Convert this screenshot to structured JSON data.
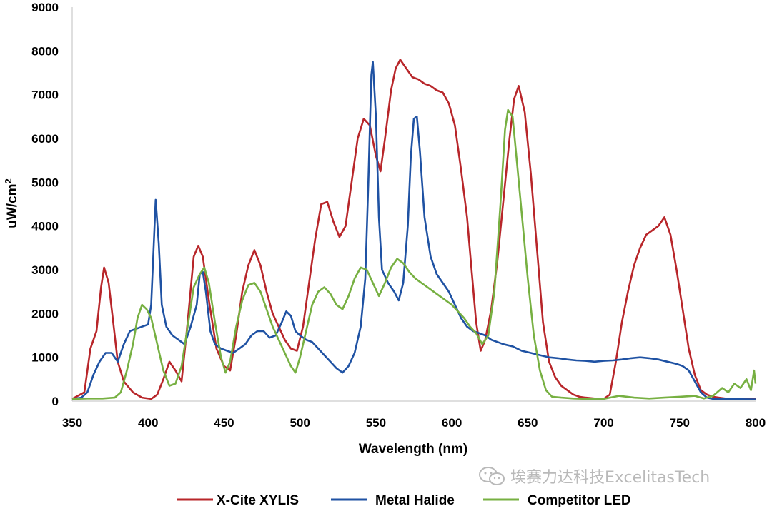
{
  "chart_data": {
    "type": "line",
    "title": "",
    "xlabel": "Wavelength (nm)",
    "ylabel": "uW/cm",
    "ylabel_superscript": "2",
    "xlim": [
      350,
      800
    ],
    "ylim": [
      0,
      9000
    ],
    "x_ticks": [
      "350",
      "400",
      "450",
      "500",
      "550",
      "600",
      "650",
      "700",
      "750",
      "800"
    ],
    "y_ticks": [
      "0",
      "1000",
      "2000",
      "3000",
      "4000",
      "5000",
      "6000",
      "7000",
      "8000",
      "9000"
    ],
    "legend_position": "bottom",
    "series": [
      {
        "name": "X-Cite XYLIS",
        "color": "#b8262a",
        "points": [
          [
            350,
            50
          ],
          [
            358,
            200
          ],
          [
            362,
            1200
          ],
          [
            366,
            1600
          ],
          [
            369,
            2600
          ],
          [
            371,
            3050
          ],
          [
            374,
            2700
          ],
          [
            377,
            1800
          ],
          [
            380,
            900
          ],
          [
            384,
            450
          ],
          [
            390,
            200
          ],
          [
            396,
            80
          ],
          [
            402,
            50
          ],
          [
            406,
            150
          ],
          [
            410,
            500
          ],
          [
            414,
            900
          ],
          [
            418,
            700
          ],
          [
            422,
            450
          ],
          [
            426,
            1800
          ],
          [
            430,
            3300
          ],
          [
            433,
            3550
          ],
          [
            436,
            3300
          ],
          [
            440,
            2300
          ],
          [
            445,
            1200
          ],
          [
            450,
            800
          ],
          [
            454,
            700
          ],
          [
            458,
            1500
          ],
          [
            462,
            2500
          ],
          [
            466,
            3100
          ],
          [
            470,
            3450
          ],
          [
            474,
            3100
          ],
          [
            478,
            2500
          ],
          [
            482,
            2000
          ],
          [
            486,
            1700
          ],
          [
            490,
            1400
          ],
          [
            494,
            1200
          ],
          [
            498,
            1150
          ],
          [
            502,
            1700
          ],
          [
            506,
            2700
          ],
          [
            510,
            3700
          ],
          [
            514,
            4500
          ],
          [
            518,
            4550
          ],
          [
            522,
            4100
          ],
          [
            526,
            3750
          ],
          [
            530,
            4000
          ],
          [
            534,
            5000
          ],
          [
            538,
            6000
          ],
          [
            542,
            6450
          ],
          [
            546,
            6300
          ],
          [
            550,
            5600
          ],
          [
            553,
            5250
          ],
          [
            556,
            6000
          ],
          [
            560,
            7100
          ],
          [
            563,
            7600
          ],
          [
            566,
            7800
          ],
          [
            570,
            7600
          ],
          [
            574,
            7400
          ],
          [
            578,
            7350
          ],
          [
            582,
            7250
          ],
          [
            586,
            7200
          ],
          [
            590,
            7100
          ],
          [
            594,
            7050
          ],
          [
            598,
            6800
          ],
          [
            602,
            6300
          ],
          [
            606,
            5300
          ],
          [
            610,
            4200
          ],
          [
            613,
            3000
          ],
          [
            616,
            1800
          ],
          [
            619,
            1150
          ],
          [
            622,
            1400
          ],
          [
            626,
            2100
          ],
          [
            630,
            3200
          ],
          [
            634,
            4600
          ],
          [
            638,
            6000
          ],
          [
            641,
            6900
          ],
          [
            644,
            7200
          ],
          [
            648,
            6600
          ],
          [
            652,
            5200
          ],
          [
            656,
            3500
          ],
          [
            660,
            1800
          ],
          [
            664,
            900
          ],
          [
            668,
            550
          ],
          [
            672,
            350
          ],
          [
            676,
            250
          ],
          [
            680,
            150
          ],
          [
            684,
            100
          ],
          [
            688,
            80
          ],
          [
            694,
            60
          ],
          [
            700,
            50
          ],
          [
            704,
            150
          ],
          [
            708,
            900
          ],
          [
            712,
            1800
          ],
          [
            716,
            2500
          ],
          [
            720,
            3100
          ],
          [
            724,
            3500
          ],
          [
            728,
            3800
          ],
          [
            732,
            3900
          ],
          [
            736,
            4000
          ],
          [
            740,
            4200
          ],
          [
            744,
            3800
          ],
          [
            748,
            3000
          ],
          [
            752,
            2100
          ],
          [
            756,
            1200
          ],
          [
            760,
            600
          ],
          [
            764,
            250
          ],
          [
            768,
            150
          ],
          [
            772,
            100
          ],
          [
            776,
            80
          ],
          [
            780,
            60
          ],
          [
            786,
            60
          ],
          [
            792,
            50
          ],
          [
            800,
            50
          ]
        ]
      },
      {
        "name": "Metal Halide",
        "color": "#1f52a3",
        "points": [
          [
            350,
            50
          ],
          [
            356,
            80
          ],
          [
            360,
            200
          ],
          [
            364,
            600
          ],
          [
            368,
            900
          ],
          [
            372,
            1100
          ],
          [
            376,
            1100
          ],
          [
            380,
            900
          ],
          [
            384,
            1300
          ],
          [
            388,
            1600
          ],
          [
            392,
            1650
          ],
          [
            396,
            1700
          ],
          [
            400,
            1750
          ],
          [
            402,
            2200
          ],
          [
            404,
            3800
          ],
          [
            405,
            4600
          ],
          [
            407,
            3600
          ],
          [
            409,
            2200
          ],
          [
            412,
            1700
          ],
          [
            416,
            1500
          ],
          [
            420,
            1400
          ],
          [
            424,
            1300
          ],
          [
            428,
            1700
          ],
          [
            432,
            2200
          ],
          [
            434,
            2900
          ],
          [
            436,
            2950
          ],
          [
            438,
            2500
          ],
          [
            441,
            1600
          ],
          [
            444,
            1300
          ],
          [
            448,
            1200
          ],
          [
            452,
            1150
          ],
          [
            456,
            1100
          ],
          [
            460,
            1200
          ],
          [
            464,
            1300
          ],
          [
            468,
            1500
          ],
          [
            472,
            1600
          ],
          [
            476,
            1600
          ],
          [
            480,
            1450
          ],
          [
            484,
            1500
          ],
          [
            488,
            1800
          ],
          [
            491,
            2050
          ],
          [
            494,
            1950
          ],
          [
            497,
            1600
          ],
          [
            500,
            1500
          ],
          [
            504,
            1400
          ],
          [
            508,
            1350
          ],
          [
            512,
            1200
          ],
          [
            516,
            1050
          ],
          [
            520,
            900
          ],
          [
            524,
            750
          ],
          [
            528,
            650
          ],
          [
            532,
            800
          ],
          [
            536,
            1100
          ],
          [
            540,
            1700
          ],
          [
            543,
            2800
          ],
          [
            545,
            5000
          ],
          [
            547,
            7450
          ],
          [
            548,
            7750
          ],
          [
            550,
            6500
          ],
          [
            552,
            4200
          ],
          [
            554,
            3000
          ],
          [
            558,
            2700
          ],
          [
            562,
            2500
          ],
          [
            565,
            2300
          ],
          [
            568,
            2700
          ],
          [
            571,
            4000
          ],
          [
            573,
            5600
          ],
          [
            575,
            6450
          ],
          [
            577,
            6500
          ],
          [
            579,
            5700
          ],
          [
            582,
            4200
          ],
          [
            586,
            3300
          ],
          [
            590,
            2900
          ],
          [
            594,
            2700
          ],
          [
            598,
            2500
          ],
          [
            602,
            2200
          ],
          [
            606,
            1900
          ],
          [
            610,
            1700
          ],
          [
            614,
            1600
          ],
          [
            618,
            1550
          ],
          [
            622,
            1500
          ],
          [
            626,
            1400
          ],
          [
            630,
            1350
          ],
          [
            634,
            1300
          ],
          [
            640,
            1250
          ],
          [
            646,
            1150
          ],
          [
            652,
            1100
          ],
          [
            658,
            1050
          ],
          [
            664,
            1000
          ],
          [
            670,
            980
          ],
          [
            676,
            950
          ],
          [
            682,
            930
          ],
          [
            688,
            920
          ],
          [
            694,
            900
          ],
          [
            700,
            920
          ],
          [
            706,
            930
          ],
          [
            712,
            950
          ],
          [
            718,
            980
          ],
          [
            724,
            1000
          ],
          [
            730,
            980
          ],
          [
            736,
            950
          ],
          [
            742,
            900
          ],
          [
            748,
            850
          ],
          [
            752,
            800
          ],
          [
            756,
            700
          ],
          [
            760,
            450
          ],
          [
            764,
            200
          ],
          [
            768,
            80
          ],
          [
            772,
            50
          ],
          [
            800,
            40
          ]
        ]
      },
      {
        "name": "Competitor LED",
        "color": "#77b042",
        "points": [
          [
            350,
            50
          ],
          [
            360,
            60
          ],
          [
            370,
            60
          ],
          [
            378,
            80
          ],
          [
            382,
            200
          ],
          [
            386,
            700
          ],
          [
            390,
            1300
          ],
          [
            393,
            1900
          ],
          [
            396,
            2200
          ],
          [
            399,
            2100
          ],
          [
            402,
            1900
          ],
          [
            406,
            1300
          ],
          [
            410,
            700
          ],
          [
            414,
            350
          ],
          [
            418,
            400
          ],
          [
            422,
            800
          ],
          [
            426,
            1700
          ],
          [
            430,
            2600
          ],
          [
            434,
            2900
          ],
          [
            437,
            3050
          ],
          [
            440,
            2700
          ],
          [
            444,
            1800
          ],
          [
            448,
            1000
          ],
          [
            451,
            650
          ],
          [
            454,
            900
          ],
          [
            458,
            1700
          ],
          [
            462,
            2300
          ],
          [
            466,
            2650
          ],
          [
            470,
            2700
          ],
          [
            474,
            2500
          ],
          [
            478,
            2100
          ],
          [
            482,
            1700
          ],
          [
            486,
            1400
          ],
          [
            490,
            1100
          ],
          [
            494,
            800
          ],
          [
            497,
            650
          ],
          [
            500,
            1000
          ],
          [
            504,
            1600
          ],
          [
            508,
            2200
          ],
          [
            512,
            2500
          ],
          [
            516,
            2600
          ],
          [
            520,
            2450
          ],
          [
            524,
            2200
          ],
          [
            528,
            2100
          ],
          [
            532,
            2400
          ],
          [
            536,
            2800
          ],
          [
            540,
            3050
          ],
          [
            544,
            3000
          ],
          [
            548,
            2700
          ],
          [
            552,
            2400
          ],
          [
            556,
            2700
          ],
          [
            560,
            3050
          ],
          [
            564,
            3250
          ],
          [
            568,
            3150
          ],
          [
            572,
            2950
          ],
          [
            576,
            2800
          ],
          [
            580,
            2700
          ],
          [
            584,
            2600
          ],
          [
            588,
            2500
          ],
          [
            592,
            2400
          ],
          [
            596,
            2300
          ],
          [
            600,
            2200
          ],
          [
            604,
            2050
          ],
          [
            608,
            1900
          ],
          [
            612,
            1700
          ],
          [
            616,
            1550
          ],
          [
            620,
            1300
          ],
          [
            624,
            1500
          ],
          [
            628,
            2500
          ],
          [
            632,
            4500
          ],
          [
            635,
            6200
          ],
          [
            637,
            6650
          ],
          [
            640,
            6500
          ],
          [
            643,
            5400
          ],
          [
            646,
            4300
          ],
          [
            650,
            2800
          ],
          [
            654,
            1500
          ],
          [
            658,
            700
          ],
          [
            662,
            250
          ],
          [
            666,
            100
          ],
          [
            672,
            80
          ],
          [
            680,
            60
          ],
          [
            690,
            50
          ],
          [
            700,
            50
          ],
          [
            710,
            120
          ],
          [
            720,
            80
          ],
          [
            730,
            60
          ],
          [
            740,
            80
          ],
          [
            750,
            100
          ],
          [
            760,
            120
          ],
          [
            766,
            60
          ],
          [
            772,
            120
          ],
          [
            778,
            300
          ],
          [
            782,
            200
          ],
          [
            786,
            400
          ],
          [
            790,
            300
          ],
          [
            794,
            500
          ],
          [
            797,
            250
          ],
          [
            799,
            700
          ],
          [
            800,
            400
          ]
        ]
      }
    ]
  },
  "watermark": {
    "text": "埃赛力达科技ExcelitasTech",
    "icon": "wechat-icon"
  }
}
